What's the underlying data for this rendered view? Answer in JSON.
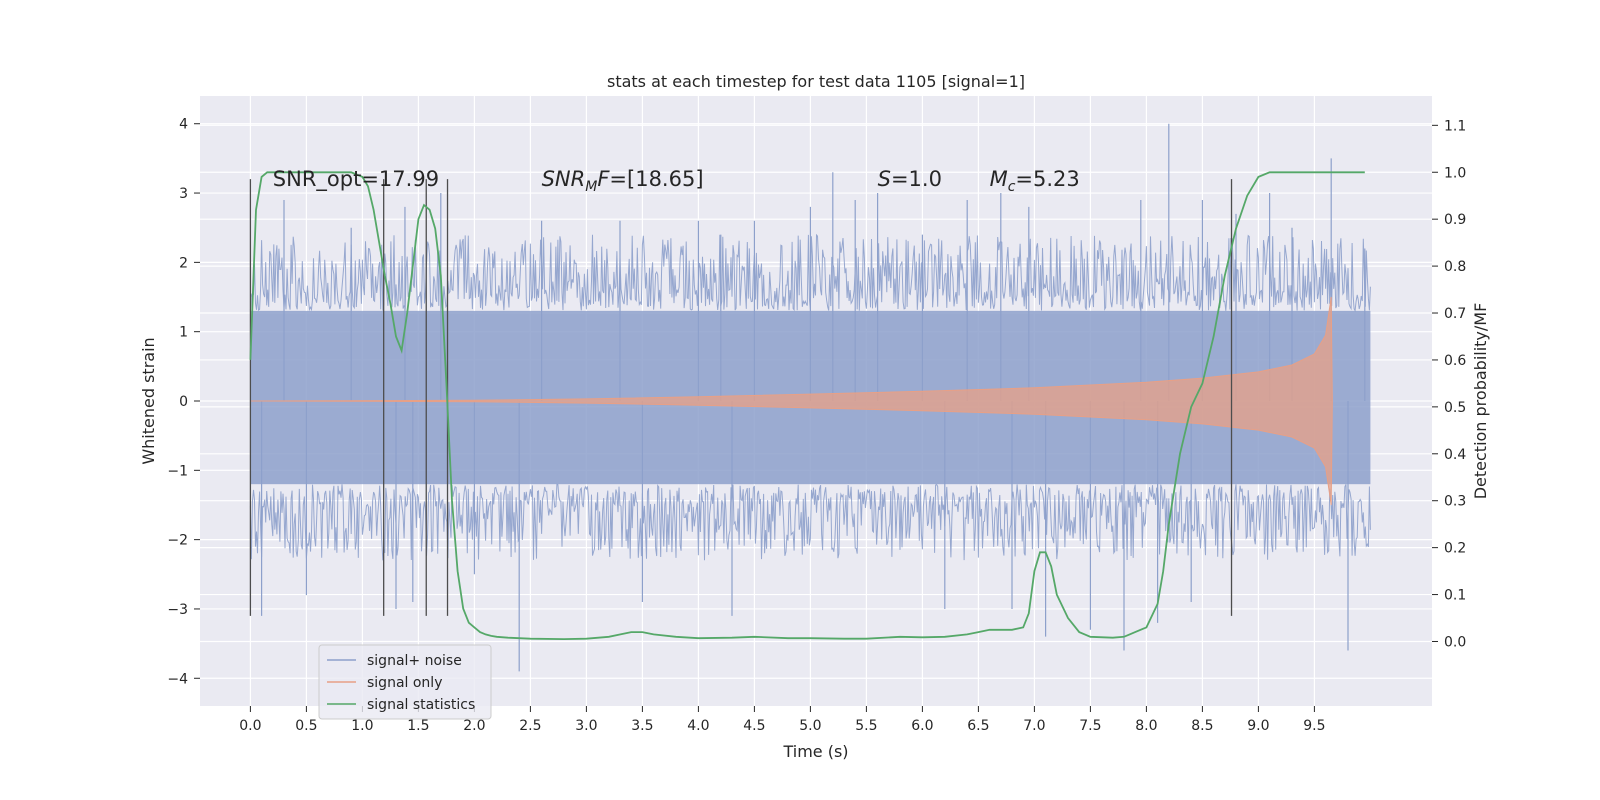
{
  "chart_data": {
    "type": "line",
    "title": "stats at each timestep for test data 1105 [signal=1]",
    "xlabel": "Time (s)",
    "ylabel": "Whitened strain",
    "y2label": "Detection probability/MF",
    "xlim": [
      -0.45,
      10.55
    ],
    "ylim": [
      -4.4,
      4.4
    ],
    "y2lim": [
      -0.1375,
      1.1625
    ],
    "xticks": [
      "0.0",
      "0.5",
      "1.0",
      "1.5",
      "2.0",
      "2.5",
      "3.0",
      "3.5",
      "4.0",
      "4.5",
      "5.0",
      "5.5",
      "6.0",
      "6.5",
      "7.0",
      "7.5",
      "8.0",
      "8.5",
      "9.0",
      "9.5"
    ],
    "yticks": [
      "4",
      "3",
      "2",
      "1",
      "0",
      "−1",
      "−2",
      "−3",
      "−4"
    ],
    "y2ticks": [
      "1.1",
      "1.0",
      "0.9",
      "0.8",
      "0.7",
      "0.6",
      "0.5",
      "0.4",
      "0.3",
      "0.2",
      "0.1",
      "0.0"
    ],
    "grid": true,
    "legend": {
      "placement": "lower-left",
      "entries": [
        {
          "label": "signal+ noise",
          "color": "#8da0cb"
        },
        {
          "label": "signal only",
          "color": "#e8a086"
        },
        {
          "label": "signal statistics",
          "color": "#55a868"
        }
      ]
    },
    "annotations": [
      {
        "name": "snr-opt",
        "text": "SNR_opt=17.99",
        "x": 0.2,
        "y": 3.1
      },
      {
        "name": "snr-mf",
        "base": "SNR",
        "sub": "M",
        "suffix": "F=[18.65]",
        "x": 2.6,
        "y": 3.1
      },
      {
        "name": "s-value",
        "base": "S",
        "suffix": "=1.0",
        "x": 5.6,
        "y": 3.1
      },
      {
        "name": "mc-value",
        "base": "M",
        "sub": "c",
        "suffix": "=5.23",
        "x": 6.6,
        "y": 3.1
      }
    ],
    "vertical_markers": [
      0.0,
      1.19,
      1.57,
      1.76,
      8.76
    ],
    "vertical_marker_range": [
      -3.1,
      3.2
    ],
    "noise_series": {
      "name": "signal+ noise",
      "x_range": [
        0.0,
        10.0
      ],
      "band_extent": [
        -1.2,
        1.3
      ],
      "spikes": [
        [
          0.1,
          -3.1
        ],
        [
          0.3,
          2.9
        ],
        [
          0.5,
          -2.8
        ],
        [
          0.9,
          2.5
        ],
        [
          1.3,
          -3.0
        ],
        [
          1.38,
          2.8
        ],
        [
          1.45,
          -2.9
        ],
        [
          1.7,
          3.0
        ],
        [
          2.0,
          -2.5
        ],
        [
          2.4,
          -3.9
        ],
        [
          2.6,
          2.6
        ],
        [
          3.3,
          2.6
        ],
        [
          3.5,
          -2.9
        ],
        [
          4.0,
          2.6
        ],
        [
          4.2,
          2.4
        ],
        [
          4.3,
          -3.1
        ],
        [
          4.5,
          2.6
        ],
        [
          5.0,
          2.8
        ],
        [
          5.2,
          3.3
        ],
        [
          5.4,
          2.9
        ],
        [
          5.6,
          3.0
        ],
        [
          6.0,
          2.4
        ],
        [
          6.2,
          -3.0
        ],
        [
          6.4,
          2.9
        ],
        [
          6.7,
          3.0
        ],
        [
          6.8,
          -3.0
        ],
        [
          6.95,
          2.8
        ],
        [
          7.1,
          -3.4
        ],
        [
          7.5,
          -3.3
        ],
        [
          7.8,
          -3.6
        ],
        [
          7.95,
          2.9
        ],
        [
          8.1,
          -3.2
        ],
        [
          8.2,
          4.0
        ],
        [
          8.4,
          -2.9
        ],
        [
          8.5,
          2.9
        ],
        [
          8.8,
          2.7
        ],
        [
          9.1,
          3.0
        ],
        [
          9.3,
          2.5
        ],
        [
          9.65,
          3.5
        ],
        [
          9.8,
          -3.6
        ],
        [
          9.95,
          2.2
        ]
      ]
    },
    "signal_envelope": {
      "name": "signal only",
      "x": [
        0.0,
        2.0,
        3.0,
        4.0,
        5.0,
        6.0,
        7.0,
        8.0,
        8.5,
        9.0,
        9.3,
        9.5,
        9.6,
        9.65,
        9.66
      ],
      "amp": [
        0.0,
        0.01,
        0.03,
        0.06,
        0.1,
        0.14,
        0.19,
        0.27,
        0.33,
        0.42,
        0.52,
        0.68,
        0.95,
        1.5,
        0.0
      ]
    },
    "series": [
      {
        "name": "signal statistics",
        "axis": "right",
        "x": [
          0.0,
          0.05,
          0.1,
          0.15,
          0.2,
          0.3,
          0.5,
          0.7,
          0.9,
          1.0,
          1.05,
          1.1,
          1.15,
          1.2,
          1.25,
          1.3,
          1.35,
          1.4,
          1.45,
          1.5,
          1.55,
          1.6,
          1.65,
          1.7,
          1.75,
          1.8,
          1.85,
          1.9,
          1.95,
          2.0,
          2.05,
          2.1,
          2.15,
          2.2,
          2.3,
          2.5,
          2.8,
          3.0,
          3.2,
          3.4,
          3.5,
          3.6,
          3.8,
          4.0,
          4.3,
          4.5,
          4.8,
          5.0,
          5.3,
          5.5,
          5.8,
          6.0,
          6.2,
          6.4,
          6.5,
          6.6,
          6.8,
          6.9,
          6.95,
          7.0,
          7.05,
          7.1,
          7.15,
          7.2,
          7.3,
          7.4,
          7.5,
          7.7,
          7.8,
          7.9,
          8.0,
          8.1,
          8.15,
          8.2,
          8.3,
          8.4,
          8.5,
          8.6,
          8.7,
          8.8,
          8.9,
          9.0,
          9.1,
          9.3,
          9.5,
          9.7,
          9.95
        ],
        "values": [
          0.6,
          0.92,
          0.99,
          1.0,
          1.0,
          1.0,
          1.0,
          1.0,
          1.0,
          0.99,
          0.97,
          0.92,
          0.85,
          0.78,
          0.72,
          0.65,
          0.62,
          0.7,
          0.8,
          0.9,
          0.93,
          0.92,
          0.88,
          0.78,
          0.55,
          0.3,
          0.15,
          0.07,
          0.04,
          0.03,
          0.02,
          0.015,
          0.012,
          0.01,
          0.008,
          0.006,
          0.005,
          0.006,
          0.01,
          0.02,
          0.02,
          0.015,
          0.01,
          0.007,
          0.008,
          0.01,
          0.007,
          0.007,
          0.006,
          0.006,
          0.01,
          0.009,
          0.01,
          0.015,
          0.02,
          0.025,
          0.025,
          0.03,
          0.06,
          0.15,
          0.19,
          0.19,
          0.16,
          0.1,
          0.05,
          0.02,
          0.01,
          0.008,
          0.01,
          0.02,
          0.03,
          0.08,
          0.15,
          0.25,
          0.4,
          0.5,
          0.55,
          0.65,
          0.78,
          0.88,
          0.95,
          0.99,
          1.0,
          1.0,
          1.0,
          1.0,
          1.0
        ]
      }
    ]
  }
}
